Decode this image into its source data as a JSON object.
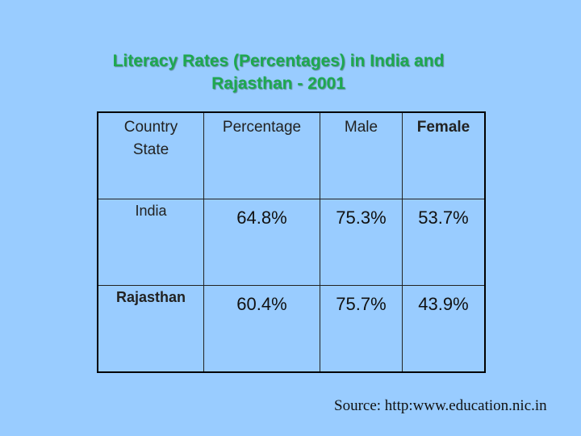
{
  "title": {
    "line1": "Literacy Rates  (Percentages) in  India and",
    "line2": "Rajasthan - 2001"
  },
  "table": {
    "headers": [
      "Country",
      "State",
      "Percentage",
      "Male",
      "Female"
    ],
    "rows": [
      {
        "name": "India",
        "percentage": "64.8%",
        "male": "75.3%",
        "female": "53.7%"
      },
      {
        "name": "Rajasthan",
        "percentage": "60.4%",
        "male": "75.7%",
        "female": "43.9%"
      }
    ]
  },
  "source": "Source: http:www.education.nic.in",
  "colors": {
    "background": "#99ccff",
    "title": "#1ea84f"
  }
}
